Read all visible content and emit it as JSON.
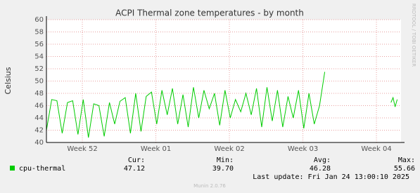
{
  "chart_data": {
    "type": "line",
    "title": "ACPI Thermal zone temperatures - by month",
    "y_label": "Celsius",
    "side_text": "RRDTOOL / TOBI OETIKER",
    "x": [
      0,
      0.5,
      1,
      1.5,
      2,
      2.5,
      3,
      3.5,
      4,
      4.5,
      5,
      5.5,
      6,
      6.5,
      7,
      7.5,
      8,
      8.5,
      9,
      9.5,
      10,
      10.5,
      11,
      11.5,
      12,
      12.5,
      13,
      13.5,
      14,
      14.5,
      15,
      15.5,
      16,
      16.5,
      17,
      17.5,
      18,
      18.5,
      19,
      19.5,
      20,
      20.5,
      21,
      21.5,
      22,
      22.5,
      23,
      23.5,
      24,
      24.5,
      25,
      25.5,
      26,
      26.5,
      27,
      32.8,
      33.0,
      33.2,
      33.4
    ],
    "series": [
      {
        "name": "cpu-thermal",
        "color": "#00cc00",
        "values": [
          42.0,
          47.0,
          46.8,
          41.5,
          46.5,
          46.8,
          41.3,
          47.0,
          40.8,
          46.3,
          46.0,
          41.0,
          46.5,
          43.0,
          46.7,
          47.3,
          41.5,
          48.0,
          41.8,
          47.5,
          48.2,
          43.0,
          48.5,
          44.5,
          48.8,
          43.0,
          47.8,
          42.5,
          49.0,
          44.0,
          48.5,
          45.5,
          48.0,
          42.8,
          48.5,
          44.0,
          47.0,
          45.0,
          48.0,
          44.5,
          48.8,
          42.5,
          49.0,
          43.5,
          48.5,
          42.5,
          47.5,
          44.0,
          48.5,
          42.3,
          48.0,
          43.0,
          46.0,
          51.5,
          null,
          46.5,
          47.3,
          45.8,
          47.0
        ]
      }
    ],
    "xlim": [
      0,
      33.76
    ],
    "xticks": [
      {
        "value": 3.42,
        "label": "Week 52"
      },
      {
        "value": 10.42,
        "label": "Week 01"
      },
      {
        "value": 17.42,
        "label": "Week 02"
      },
      {
        "value": 24.42,
        "label": "Week 03"
      },
      {
        "value": 31.42,
        "label": "Week 04"
      }
    ],
    "ylim": [
      40,
      60
    ],
    "yticks": [
      40,
      42,
      44,
      46,
      48,
      50,
      52,
      54,
      56,
      58,
      60
    ],
    "grid": true,
    "stats": {
      "headers": [
        "Cur:",
        "Min:",
        "Avg:",
        "Max:"
      ],
      "values": [
        "47.12",
        "39.70",
        "46.28",
        "55.66"
      ]
    },
    "last_update": "Last update: Fri Jan 24 13:00:10 2025",
    "footer": "Munin 2.0.76"
  }
}
